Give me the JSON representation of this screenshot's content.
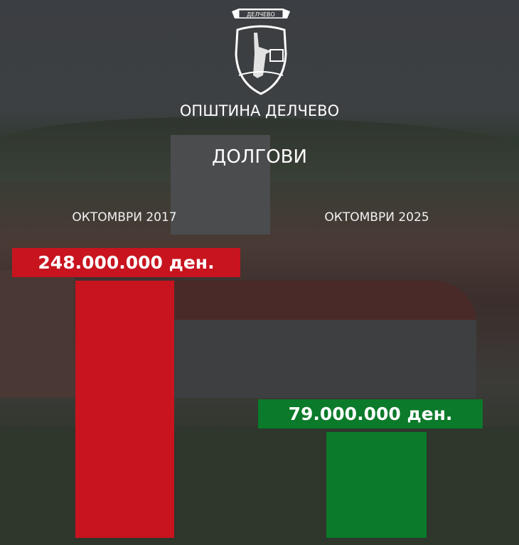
{
  "header": {
    "logo_text": "ДЕЛЧЕВО",
    "municipality": "ОПШТИНА ДЕЛЧЕВО",
    "title": "ДОЛГОВИ"
  },
  "chart_data": {
    "type": "bar",
    "title": "ДОЛГОВИ",
    "categories": [
      "ОКТОМВРИ 2017",
      "ОКТОМВРИ 2025"
    ],
    "values": [
      248000000,
      79000000
    ],
    "data_labels": [
      "248.000.000 ден.",
      "79.000.000 ден."
    ],
    "colors": [
      "#c8141f",
      "#0b7a2a"
    ],
    "grid": false
  }
}
